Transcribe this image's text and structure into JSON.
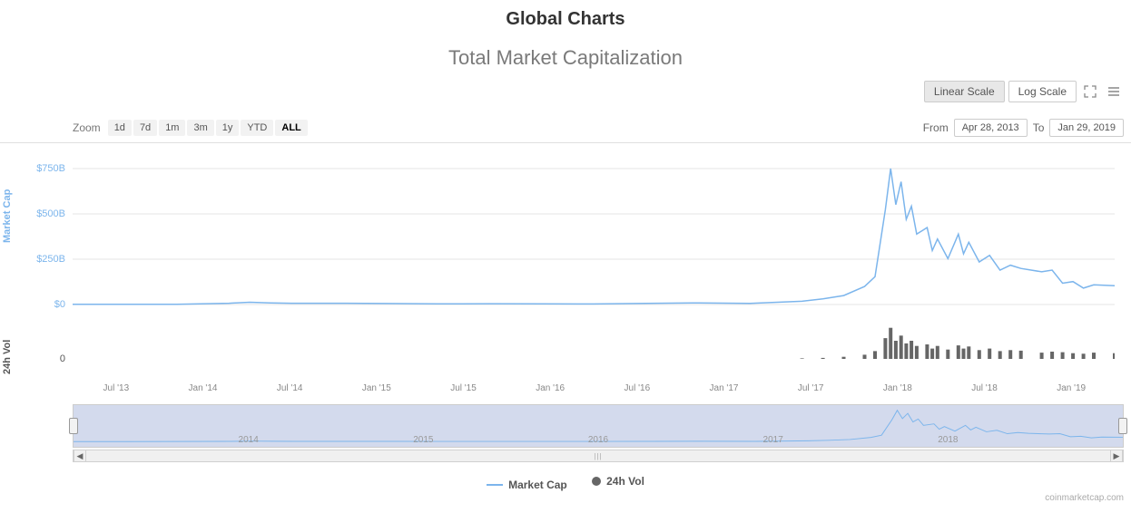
{
  "page_title": "Global Charts",
  "chart": {
    "title": "Total Market Capitalization",
    "scale_buttons": {
      "linear": "Linear Scale",
      "log": "Log Scale",
      "active": "linear"
    },
    "zoom": {
      "label": "Zoom",
      "options": [
        "1d",
        "7d",
        "1m",
        "3m",
        "1y",
        "YTD",
        "ALL"
      ],
      "active": "ALL"
    },
    "date_range": {
      "from_label": "From",
      "from_value": "Apr 28, 2013",
      "to_label": "To",
      "to_value": "Jan 29, 2019"
    },
    "y_axis_market_cap": {
      "label": "Market Cap",
      "ticks": [
        "$0",
        "$250B",
        "$500B",
        "$750B"
      ],
      "color": "#7cb5ec",
      "ylim": [
        0,
        830
      ]
    },
    "y_axis_volume": {
      "label": "24h Vol",
      "ticks": [
        "0"
      ],
      "color": "#555555",
      "ylim": [
        0,
        70
      ]
    },
    "x_axis": {
      "ticks": [
        "Jul '13",
        "Jan '14",
        "Jul '14",
        "Jan '15",
        "Jul '15",
        "Jan '16",
        "Jul '16",
        "Jan '17",
        "Jul '17",
        "Jan '18",
        "Jul '18",
        "Jan '19"
      ]
    },
    "market_cap_series": {
      "type": "line",
      "color": "#7cb5ec",
      "line_width": 1.5,
      "points": [
        [
          0,
          1
        ],
        [
          5,
          1
        ],
        [
          10,
          1.5
        ],
        [
          15,
          8
        ],
        [
          17,
          14
        ],
        [
          19,
          10
        ],
        [
          21,
          8
        ],
        [
          25,
          8
        ],
        [
          30,
          6
        ],
        [
          35,
          4
        ],
        [
          40,
          5
        ],
        [
          45,
          4
        ],
        [
          50,
          3.5
        ],
        [
          55,
          7
        ],
        [
          60,
          10
        ],
        [
          65,
          7
        ],
        [
          70,
          20
        ],
        [
          72,
          35
        ],
        [
          74,
          55
        ],
        [
          76,
          110
        ],
        [
          77,
          170
        ],
        [
          78,
          580
        ],
        [
          78.5,
          830
        ],
        [
          79,
          610
        ],
        [
          79.5,
          750
        ],
        [
          80,
          520
        ],
        [
          80.5,
          600
        ],
        [
          81,
          430
        ],
        [
          82,
          470
        ],
        [
          82.5,
          330
        ],
        [
          83,
          400
        ],
        [
          84,
          280
        ],
        [
          85,
          430
        ],
        [
          85.5,
          310
        ],
        [
          86,
          380
        ],
        [
          87,
          260
        ],
        [
          88,
          300
        ],
        [
          89,
          210
        ],
        [
          90,
          240
        ],
        [
          91,
          220
        ],
        [
          93,
          200
        ],
        [
          94,
          210
        ],
        [
          95,
          130
        ],
        [
          96,
          140
        ],
        [
          97,
          100
        ],
        [
          98,
          120
        ],
        [
          100,
          115
        ]
      ]
    },
    "volume_series": {
      "type": "bar",
      "color": "#666666",
      "points": [
        [
          70,
          1
        ],
        [
          72,
          2
        ],
        [
          74,
          4
        ],
        [
          76,
          8
        ],
        [
          77,
          15
        ],
        [
          78,
          40
        ],
        [
          78.5,
          60
        ],
        [
          79,
          35
        ],
        [
          79.5,
          45
        ],
        [
          80,
          30
        ],
        [
          80.5,
          35
        ],
        [
          81,
          25
        ],
        [
          82,
          28
        ],
        [
          82.5,
          20
        ],
        [
          83,
          25
        ],
        [
          84,
          18
        ],
        [
          85,
          26
        ],
        [
          85.5,
          20
        ],
        [
          86,
          24
        ],
        [
          87,
          17
        ],
        [
          88,
          20
        ],
        [
          89,
          15
        ],
        [
          90,
          17
        ],
        [
          91,
          16
        ],
        [
          93,
          12
        ],
        [
          94,
          14
        ],
        [
          95,
          13
        ],
        [
          96,
          11
        ],
        [
          97,
          10
        ],
        [
          98,
          12
        ],
        [
          100,
          11
        ]
      ]
    },
    "navigator_years": [
      "2014",
      "2015",
      "2016",
      "2017",
      "2018"
    ],
    "background_color": "#ffffff",
    "grid_color": "#e6e6e6"
  },
  "legend": {
    "market_cap": "Market Cap",
    "volume": "24h Vol"
  },
  "attribution": "coinmarketcap.com"
}
